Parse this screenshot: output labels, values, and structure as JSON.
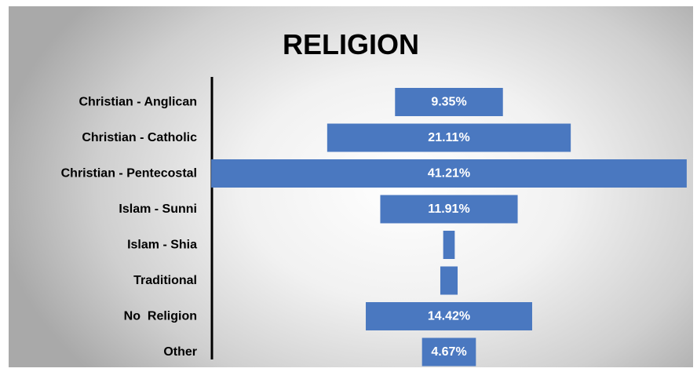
{
  "chart_data": {
    "type": "bar",
    "orientation": "horizontal",
    "layout": "centered",
    "title": "RELIGION",
    "categories": [
      "Christian - Anglican",
      "Christian - Catholic",
      "Christian - Pentecostal",
      "Islam - Sunni",
      "Islam - Shia",
      "Traditional",
      "No  Religion",
      "Other"
    ],
    "values": [
      9.35,
      21.11,
      41.21,
      11.91,
      1.0,
      1.5,
      14.42,
      4.67
    ],
    "value_labels": [
      "9.35%",
      "21.11%",
      "41.21%",
      "11.91%",
      "",
      "",
      "14.42%",
      "4.67%"
    ],
    "bar_color": "#4a78c0",
    "grid": false,
    "legend": "none"
  }
}
